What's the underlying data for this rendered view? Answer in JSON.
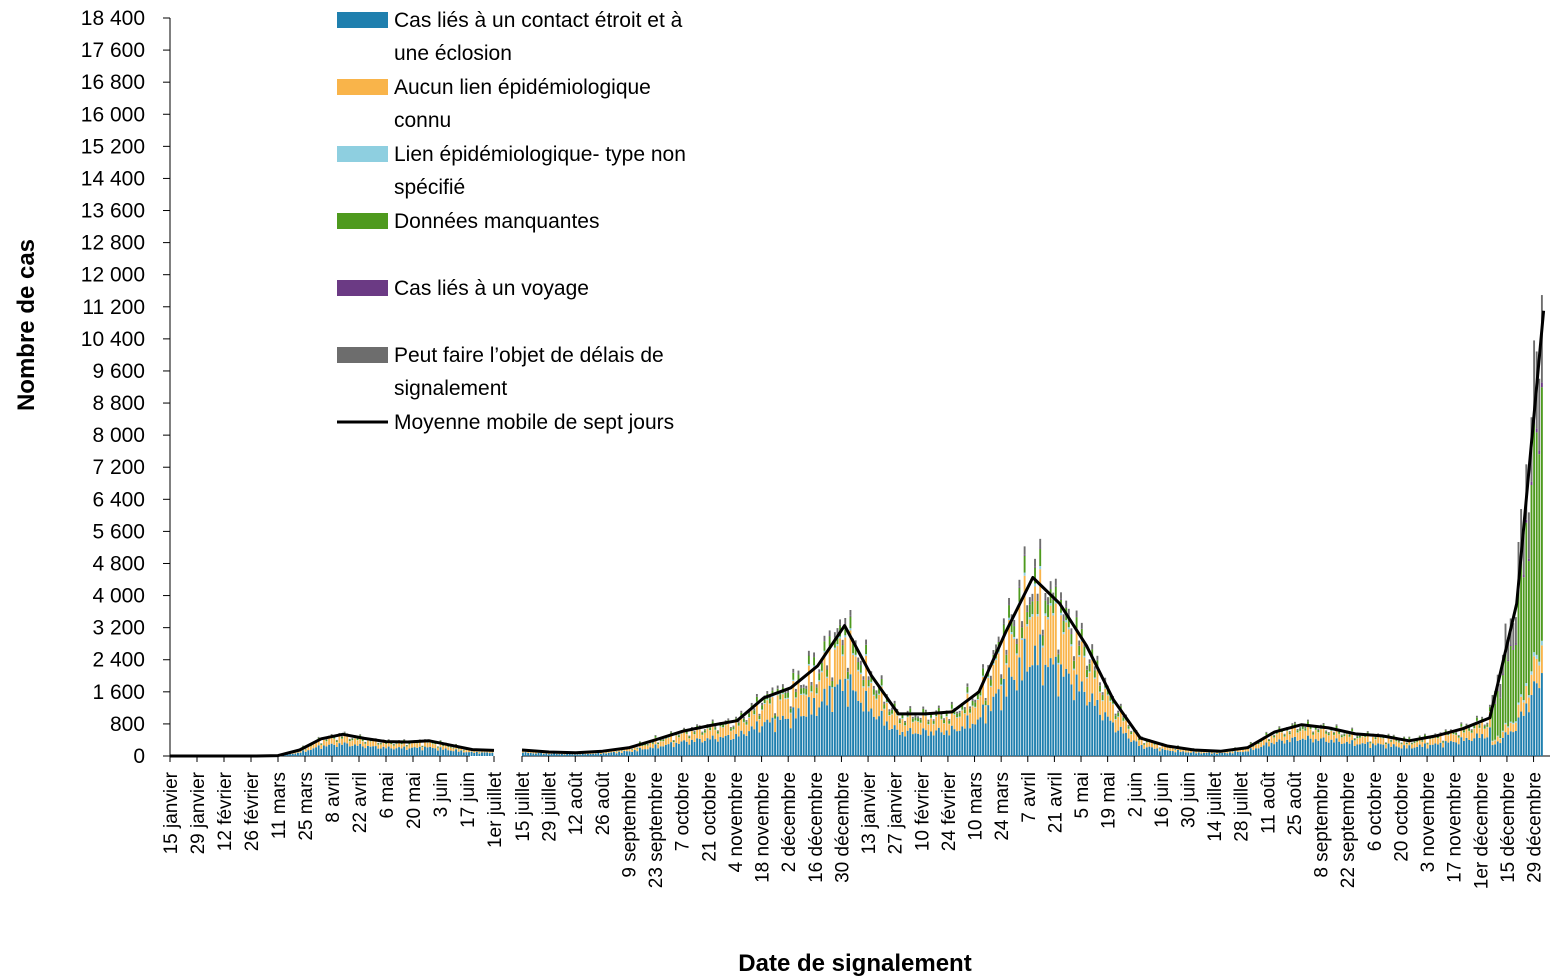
{
  "chart_data": {
    "type": "bar",
    "stacked": true,
    "xlabel": "Date de signalement",
    "ylabel": "Nombre de cas",
    "ylim": [
      0,
      18400
    ],
    "y_ticks": [
      0,
      800,
      1600,
      2400,
      3200,
      4000,
      4800,
      5600,
      6400,
      7200,
      8000,
      8800,
      9600,
      10400,
      11200,
      12000,
      12800,
      13600,
      14400,
      15200,
      16000,
      16800,
      17600,
      18400
    ],
    "y_tick_labels": [
      "0",
      "800",
      "1 600",
      "2 400",
      "3 200",
      "4 000",
      "4 800",
      "5 600",
      "6 400",
      "7 200",
      "8 000",
      "8 800",
      "9 600",
      "10 400",
      "11 200",
      "12 000",
      "12 800",
      "13 600",
      "14 400",
      "15 200",
      "16 000",
      "16 800",
      "17 600",
      "18 400"
    ],
    "grid": false,
    "legend_position": "top-left",
    "series_colors": [
      "#1f7fae",
      "#f9b44a",
      "#8ecfe0",
      "#4e9a1e",
      "#6b3a84",
      "#6d6d6d"
    ],
    "line_color": "#000000",
    "segments": [
      {
        "tick_labels": [
          "15 janvier",
          "29 janvier",
          "12 février",
          "26 février",
          "11 mars",
          "25 mars",
          "8 avril",
          "22 avril",
          "6 mai",
          "20 mai",
          "3 juin",
          "17 juin",
          "1er juillet"
        ],
        "moving_average": [
          0,
          0,
          0,
          0,
          0,
          10,
          150,
          430,
          540,
          440,
          360,
          350,
          380,
          270,
          160,
          140
        ]
      },
      {
        "tick_labels": [
          "15 juillet",
          "29 juillet",
          "12 août",
          "26 août",
          "9 septembre",
          "23 septembre",
          "7 octobre",
          "21 octobre",
          "4 novembre",
          "18 novembre",
          "2 décembre",
          "16 décembre",
          "30 décembre",
          "13 janvier",
          "27 janvier",
          "10 février",
          "24 février",
          "10 mars",
          "24 mars",
          "7 avril",
          "21 avril",
          "5 mai",
          "19 mai",
          "2 juin",
          "16 juin",
          "30 juin",
          "14 juillet",
          "28 juillet",
          "11 août",
          "25 août",
          "8 septembre",
          "22 septembre",
          "6 octobre",
          "20 octobre",
          "3 novembre",
          "17 novembre",
          "1er décembre",
          "15 décembre",
          "29 décembre"
        ],
        "moving_average": [
          150,
          100,
          80,
          120,
          210,
          410,
          620,
          760,
          880,
          1450,
          1700,
          2250,
          3250,
          2000,
          1050,
          1050,
          1100,
          1600,
          3100,
          4450,
          3800,
          2750,
          1400,
          450,
          250,
          150,
          120,
          210,
          600,
          780,
          700,
          550,
          500,
          380,
          500,
          680,
          950,
          3800,
          11100
        ]
      }
    ]
  },
  "legend": [
    {
      "label": "Cas liés à un contact étroit et à une éclosion",
      "lines": [
        "Cas liés à un contact étroit et à",
        "une éclosion"
      ],
      "color": "#1f7fae",
      "kind": "swatch"
    },
    {
      "label": "Aucun lien épidémiologique connu",
      "lines": [
        "Aucun lien épidémiologique",
        "connu"
      ],
      "color": "#f9b44a",
      "kind": "swatch"
    },
    {
      "label": "Lien épidémiologique- type non spécifié",
      "lines": [
        "Lien épidémiologique- type non",
        "spécifié"
      ],
      "color": "#8ecfe0",
      "kind": "swatch"
    },
    {
      "label": "Données manquantes",
      "lines": [
        "Données manquantes"
      ],
      "color": "#4e9a1e",
      "kind": "swatch"
    },
    {
      "label": "Cas liés à un voyage",
      "lines": [
        "Cas liés à un voyage"
      ],
      "color": "#6b3a84",
      "kind": "swatch"
    },
    {
      "label": "Peut faire l’objet de délais de signalement",
      "lines": [
        "Peut faire l’objet de délais de",
        "signalement"
      ],
      "color": "#6d6d6d",
      "kind": "swatch"
    },
    {
      "label": "Moyenne mobile de sept jours",
      "lines": [
        "Moyenne mobile de sept jours"
      ],
      "color": "#000000",
      "kind": "line"
    }
  ]
}
